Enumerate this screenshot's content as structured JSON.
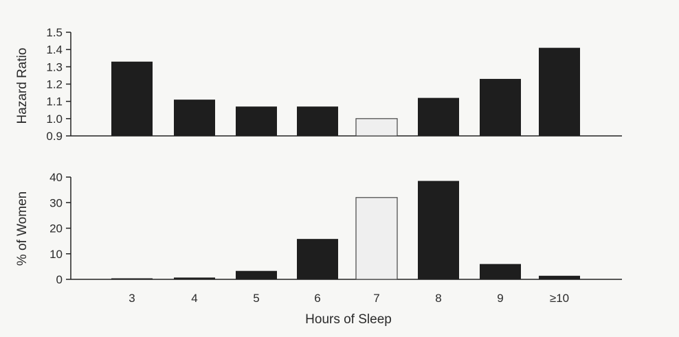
{
  "chart_data": [
    {
      "type": "bar",
      "ylabel": "Hazard Ratio",
      "xlabel": "",
      "ylim": [
        0.9,
        1.5
      ],
      "yticks": [
        "0.9",
        "1.0",
        "1.1",
        "1.2",
        "1.3",
        "1.4",
        "1.5"
      ],
      "categories": [
        "3",
        "4",
        "5",
        "6",
        "7",
        "8",
        "9",
        "≥10"
      ],
      "values": [
        1.33,
        1.11,
        1.07,
        1.07,
        1.0,
        1.12,
        1.23,
        1.41
      ],
      "reference_category": "7",
      "colors": {
        "bar": "#1e1e1e",
        "reference_bar": "#efefef"
      }
    },
    {
      "type": "bar",
      "ylabel": "% of Women",
      "xlabel": "Hours of Sleep",
      "ylim": [
        0,
        40
      ],
      "yticks": [
        "0",
        "10",
        "20",
        "30",
        "40"
      ],
      "categories": [
        "3",
        "4",
        "5",
        "6",
        "7",
        "8",
        "9",
        "≥10"
      ],
      "values": [
        0.2,
        0.7,
        3.3,
        15.8,
        32,
        38.5,
        6.0,
        1.4
      ],
      "reference_category": "7",
      "colors": {
        "bar": "#1e1e1e",
        "reference_bar": "#efefef"
      }
    }
  ]
}
